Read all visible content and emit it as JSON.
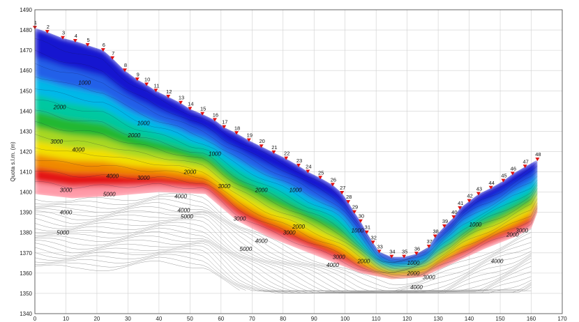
{
  "chart_data": {
    "type": "contour",
    "title": "",
    "xlabel": "",
    "ylabel": "Quota s.l.m. (m)",
    "xlim": [
      0,
      170
    ],
    "ylim": [
      1340,
      1490
    ],
    "xticks": [
      0,
      10,
      20,
      30,
      40,
      50,
      60,
      70,
      80,
      90,
      100,
      110,
      120,
      130,
      140,
      150,
      160,
      170
    ],
    "yticks": [
      1340,
      1350,
      1360,
      1370,
      1380,
      1390,
      1400,
      1410,
      1420,
      1430,
      1440,
      1450,
      1460,
      1470,
      1480,
      1490
    ],
    "grid": true,
    "colors": {
      "low": "#1a1ad6",
      "mid_low": "#00c8e6",
      "mid": "#2fbf2f",
      "mid_high": "#f0e000",
      "high": "#e61414",
      "very_high": "#ff9ab0",
      "grid": "#cfcfcf",
      "electrode": "#e01010"
    },
    "electrodes": [
      {
        "id": "1",
        "x": 0,
        "y": 1481
      },
      {
        "id": "2",
        "x": 4,
        "y": 1479
      },
      {
        "id": "3",
        "x": 9,
        "y": 1476
      },
      {
        "id": "4",
        "x": 13,
        "y": 1474.5
      },
      {
        "id": "5",
        "x": 17,
        "y": 1472.5
      },
      {
        "id": "6",
        "x": 22,
        "y": 1470
      },
      {
        "id": "7",
        "x": 25,
        "y": 1466
      },
      {
        "id": "8",
        "x": 29,
        "y": 1460
      },
      {
        "id": "9",
        "x": 33,
        "y": 1455.5
      },
      {
        "id": "10",
        "x": 36,
        "y": 1453
      },
      {
        "id": "11",
        "x": 39,
        "y": 1450
      },
      {
        "id": "12",
        "x": 43,
        "y": 1447
      },
      {
        "id": "13",
        "x": 47,
        "y": 1444
      },
      {
        "id": "14",
        "x": 50,
        "y": 1441
      },
      {
        "id": "15",
        "x": 54,
        "y": 1438.5
      },
      {
        "id": "16",
        "x": 58,
        "y": 1435.5
      },
      {
        "id": "17",
        "x": 61,
        "y": 1432
      },
      {
        "id": "18",
        "x": 65,
        "y": 1429
      },
      {
        "id": "19",
        "x": 69,
        "y": 1425.5
      },
      {
        "id": "20",
        "x": 73,
        "y": 1422.5
      },
      {
        "id": "21",
        "x": 77,
        "y": 1419.5
      },
      {
        "id": "22",
        "x": 81,
        "y": 1416.5
      },
      {
        "id": "23",
        "x": 85,
        "y": 1413
      },
      {
        "id": "24",
        "x": 88,
        "y": 1410
      },
      {
        "id": "25",
        "x": 92,
        "y": 1407
      },
      {
        "id": "26",
        "x": 96,
        "y": 1403.5
      },
      {
        "id": "27",
        "x": 99,
        "y": 1399.5
      },
      {
        "id": "28",
        "x": 101,
        "y": 1395
      },
      {
        "id": "29",
        "x": 103,
        "y": 1390
      },
      {
        "id": "30",
        "x": 105,
        "y": 1385.5
      },
      {
        "id": "31",
        "x": 107,
        "y": 1380
      },
      {
        "id": "32",
        "x": 109,
        "y": 1375
      },
      {
        "id": "33",
        "x": 111,
        "y": 1370.5
      },
      {
        "id": "34",
        "x": 115,
        "y": 1368
      },
      {
        "id": "35",
        "x": 119,
        "y": 1368
      },
      {
        "id": "36",
        "x": 123,
        "y": 1369.5
      },
      {
        "id": "37",
        "x": 127,
        "y": 1373
      },
      {
        "id": "38",
        "x": 129,
        "y": 1378
      },
      {
        "id": "39",
        "x": 132,
        "y": 1383
      },
      {
        "id": "40",
        "x": 135,
        "y": 1387.5
      },
      {
        "id": "41",
        "x": 137,
        "y": 1392
      },
      {
        "id": "42",
        "x": 140,
        "y": 1395.5
      },
      {
        "id": "43",
        "x": 143,
        "y": 1399
      },
      {
        "id": "44",
        "x": 147,
        "y": 1402
      },
      {
        "id": "45",
        "x": 151,
        "y": 1405.5
      },
      {
        "id": "46",
        "x": 154,
        "y": 1409
      },
      {
        "id": "47",
        "x": 158,
        "y": 1412.5
      },
      {
        "id": "48",
        "x": 162,
        "y": 1416
      }
    ],
    "contour_labels": [
      {
        "text": "1000",
        "x": 16,
        "y": 1453
      },
      {
        "text": "1000",
        "x": 35,
        "y": 1433
      },
      {
        "text": "1000",
        "x": 58,
        "y": 1418
      },
      {
        "text": "1000",
        "x": 84,
        "y": 1400
      },
      {
        "text": "1000",
        "x": 104,
        "y": 1380
      },
      {
        "text": "1000",
        "x": 122,
        "y": 1364
      },
      {
        "text": "1000",
        "x": 142,
        "y": 1383
      },
      {
        "text": "2000",
        "x": 8,
        "y": 1441
      },
      {
        "text": "2000",
        "x": 32,
        "y": 1427
      },
      {
        "text": "2000",
        "x": 50,
        "y": 1409
      },
      {
        "text": "2000",
        "x": 73,
        "y": 1400
      },
      {
        "text": "2000",
        "x": 85,
        "y": 1382
      },
      {
        "text": "2000",
        "x": 106,
        "y": 1365
      },
      {
        "text": "2000",
        "x": 122,
        "y": 1359
      },
      {
        "text": "2000",
        "x": 154,
        "y": 1378
      },
      {
        "text": "3000",
        "x": 7,
        "y": 1424
      },
      {
        "text": "3000",
        "x": 35,
        "y": 1406
      },
      {
        "text": "3000",
        "x": 61,
        "y": 1402
      },
      {
        "text": "3000",
        "x": 66,
        "y": 1386
      },
      {
        "text": "3000",
        "x": 82,
        "y": 1379
      },
      {
        "text": "3000",
        "x": 98,
        "y": 1367
      },
      {
        "text": "3000",
        "x": 127,
        "y": 1357
      },
      {
        "text": "3000",
        "x": 157,
        "y": 1380
      },
      {
        "text": "3000",
        "x": 10,
        "y": 1400
      },
      {
        "text": "4000",
        "x": 14,
        "y": 1420
      },
      {
        "text": "4000",
        "x": 25,
        "y": 1407
      },
      {
        "text": "4000",
        "x": 47,
        "y": 1397
      },
      {
        "text": "4000",
        "x": 10,
        "y": 1389
      },
      {
        "text": "4000",
        "x": 48,
        "y": 1390
      },
      {
        "text": "4000",
        "x": 73,
        "y": 1375
      },
      {
        "text": "4000",
        "x": 96,
        "y": 1363
      },
      {
        "text": "4000",
        "x": 123,
        "y": 1352
      },
      {
        "text": "4000",
        "x": 149,
        "y": 1365
      },
      {
        "text": "5000",
        "x": 24,
        "y": 1398
      },
      {
        "text": "5000",
        "x": 49,
        "y": 1387
      },
      {
        "text": "5000",
        "x": 9,
        "y": 1379
      },
      {
        "text": "5000",
        "x": 68,
        "y": 1371
      }
    ]
  }
}
